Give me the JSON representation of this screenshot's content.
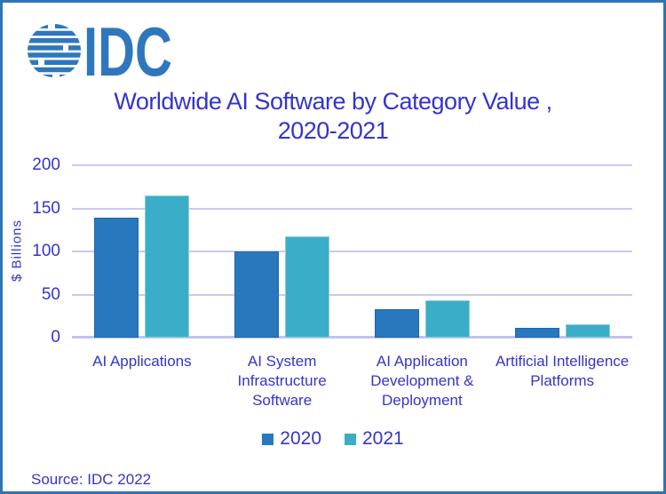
{
  "brand": {
    "logo_text": "IDC"
  },
  "title": {
    "line1": "Worldwide AI Software by Category Value ,",
    "line2": "2020-2021"
  },
  "chart_data": {
    "type": "bar",
    "title": "Worldwide AI Software by Category Value , 2020-2021",
    "categories": [
      "AI Applications",
      "AI System\nInfrastructure\nSoftware",
      "AI Application\nDevelopment &\nDeployment",
      "Artificial Intelligence\nPlatforms"
    ],
    "series": [
      {
        "name": "2020",
        "color": "#2878BE",
        "border": "#2066A8",
        "values": [
          139,
          100,
          33,
          11
        ]
      },
      {
        "name": "2021",
        "color": "#3AAEC8",
        "border": "#8FCCDD",
        "values": [
          165,
          118,
          43,
          15
        ]
      }
    ],
    "xlabel": "",
    "ylabel": "$ Billions",
    "ylim": [
      0,
      200
    ],
    "yticks": [
      0,
      50,
      100,
      150,
      200
    ],
    "grid": true,
    "legend_position": "bottom"
  },
  "source": "Source: IDC 2022",
  "colors": {
    "frame": "#2E75B6",
    "logo_blue": "#2E77BD",
    "text_blue": "#3434CB",
    "gridline": "#C9C9F1",
    "bar_2020": "#2878BE",
    "bar_2021": "#3AAEC8"
  }
}
